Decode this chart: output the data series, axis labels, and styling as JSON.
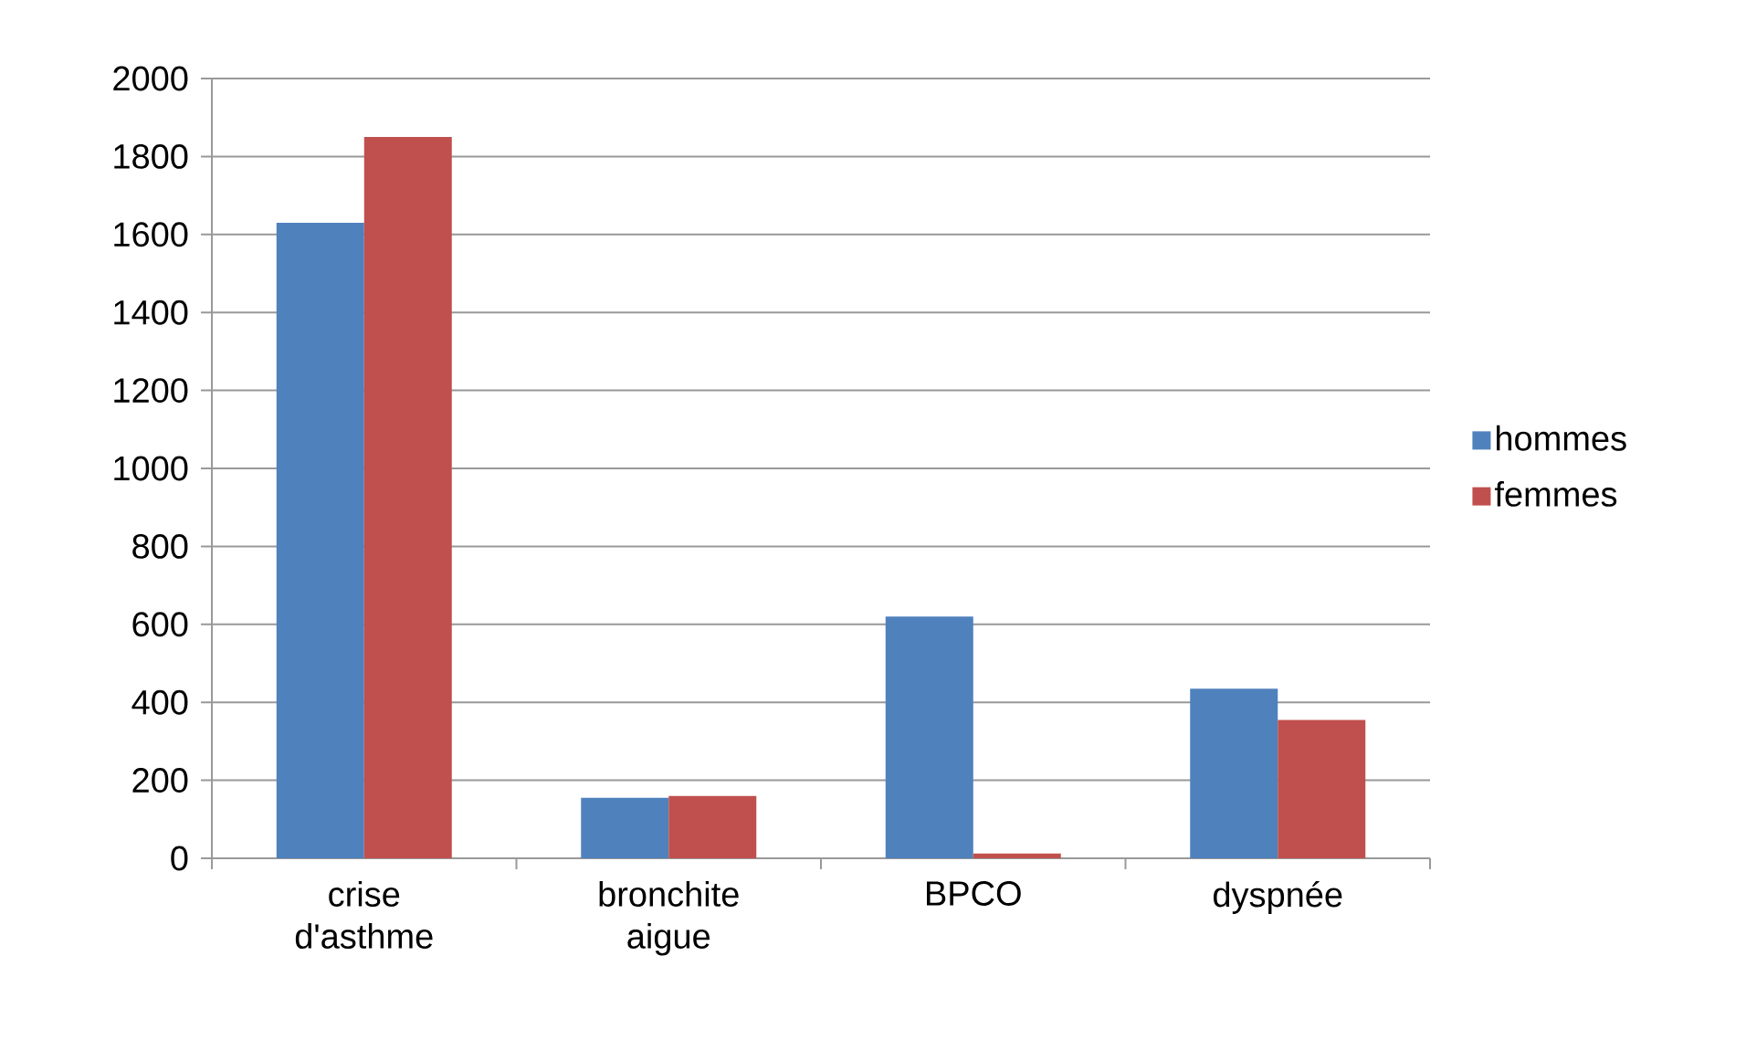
{
  "chart_data": {
    "type": "bar",
    "categories": [
      "crise d'asthme",
      "bronchite aigue",
      "BPCO",
      "dyspnée"
    ],
    "series": [
      {
        "name": "hommes",
        "color": "#4f81bd",
        "values": [
          1630,
          155,
          620,
          435
        ]
      },
      {
        "name": "femmes",
        "color": "#c0504d",
        "values": [
          1850,
          160,
          12,
          355
        ]
      }
    ],
    "ylim": [
      0,
      2000
    ],
    "yticks": [
      0,
      200,
      400,
      600,
      800,
      1000,
      1200,
      1400,
      1600,
      1800,
      2000
    ],
    "grid": "y",
    "legend": "right"
  }
}
